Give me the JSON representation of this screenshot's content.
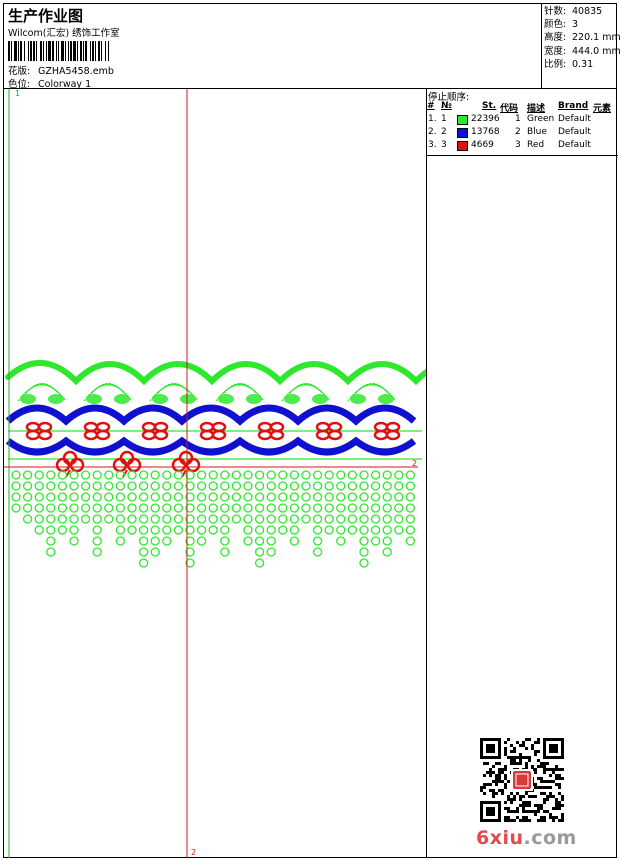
{
  "header": {
    "title": "生产作业图",
    "company": "Wilcom(汇宏) 绣饰工作室",
    "design_label": "花版:",
    "design_value": "GZHA5458.emb",
    "colorway_label": "色位:",
    "colorway_value": "Colorway 1"
  },
  "stats": [
    {
      "label": "针数:",
      "value": "40835"
    },
    {
      "label": "颜色:",
      "value": "3"
    },
    {
      "label": "高度:",
      "value": "220.1 mm"
    },
    {
      "label": "宽度:",
      "value": "444.0 mm"
    },
    {
      "label": "比例:",
      "value": "0.31"
    }
  ],
  "stop_sequence": {
    "title": "停止顺序:",
    "columns": [
      "#",
      "№",
      "St.",
      "代码",
      "描述",
      "Brand",
      "元素"
    ],
    "rows": [
      {
        "idx": "1.",
        "no": "1",
        "color": "#2ee82e",
        "stitches": "22396",
        "code": "1",
        "desc": "Green",
        "brand": "Default"
      },
      {
        "idx": "2.",
        "no": "2",
        "color": "#1010d0",
        "stitches": "13768",
        "code": "2",
        "desc": "Blue",
        "brand": "Default"
      },
      {
        "idx": "3.",
        "no": "3",
        "color": "#e01010",
        "stitches": "4669",
        "code": "3",
        "desc": "Red",
        "brand": "Default"
      }
    ]
  },
  "markers": {
    "top_left": "1",
    "bottom_mid": "2",
    "right_mid": "2"
  },
  "watermark": {
    "brand": "6xiu",
    "domain": ".com"
  },
  "colors": {
    "green": "#2ee82e",
    "blue": "#1010d0",
    "red": "#e01010",
    "guide_red": "#d01818",
    "guide_green": "#1ab01a"
  }
}
